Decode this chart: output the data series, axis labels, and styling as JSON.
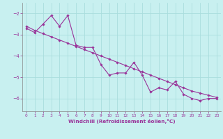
{
  "x_data": [
    0,
    1,
    2,
    3,
    4,
    5,
    6,
    7,
    8,
    9,
    10,
    11,
    12,
    13,
    14,
    15,
    16,
    17,
    18,
    19,
    20,
    21,
    22,
    23
  ],
  "y_data": [
    -2.7,
    -2.9,
    -2.5,
    -2.1,
    -2.6,
    -2.1,
    -3.5,
    -3.6,
    -3.6,
    -4.4,
    -4.9,
    -4.8,
    -4.8,
    -4.3,
    -4.9,
    -5.7,
    -5.5,
    -5.6,
    -5.2,
    -5.8,
    -6.0,
    -6.1,
    -6.0,
    -6.0
  ],
  "y_trend": [
    -2.6,
    -2.8,
    -2.95,
    -3.1,
    -3.25,
    -3.4,
    -3.55,
    -3.7,
    -3.85,
    -4.0,
    -4.15,
    -4.3,
    -4.45,
    -4.6,
    -4.75,
    -4.9,
    -5.05,
    -5.2,
    -5.35,
    -5.5,
    -5.65,
    -5.75,
    -5.85,
    -5.95
  ],
  "line_color": "#993399",
  "bg_color": "#c8f0f0",
  "grid_color": "#aadddd",
  "tick_color": "#993399",
  "xlabel": "Windchill (Refroidissement éolien,°C)",
  "ylim": [
    -6.6,
    -1.5
  ],
  "xlim": [
    -0.5,
    23.5
  ],
  "yticks": [
    -2,
    -3,
    -4,
    -5,
    -6
  ],
  "xticks": [
    0,
    1,
    2,
    3,
    4,
    5,
    6,
    7,
    8,
    9,
    10,
    11,
    12,
    13,
    14,
    15,
    16,
    17,
    18,
    19,
    20,
    21,
    22,
    23
  ]
}
